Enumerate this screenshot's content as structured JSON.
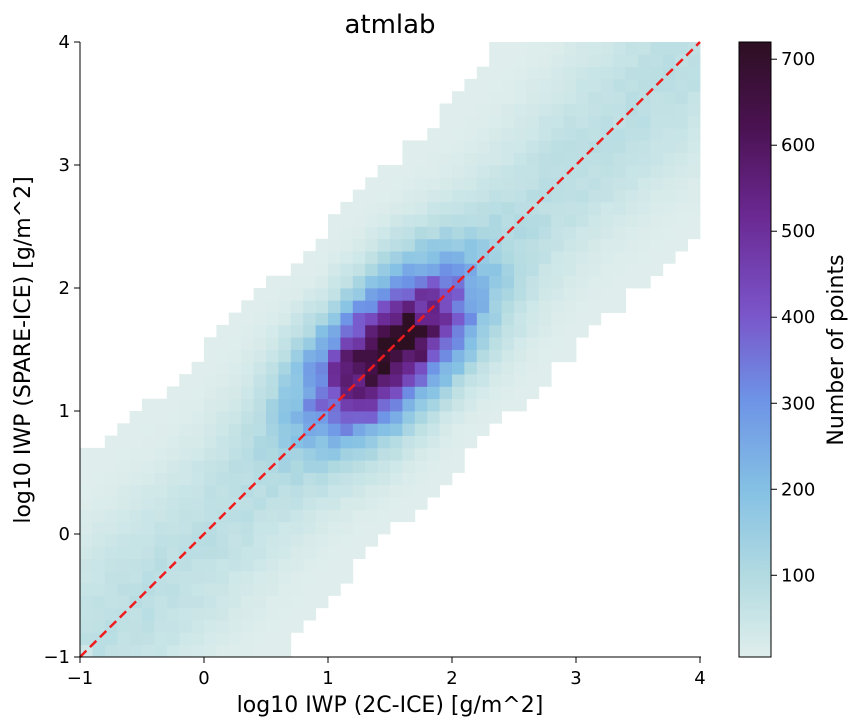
{
  "chart_data": {
    "type": "heatmap",
    "title": "atmlab",
    "xlabel": "log10 IWP (2C-ICE) [g/m^2]",
    "ylabel": "log10 IWP (SPARE-ICE) [g/m^2]",
    "xlim": [
      -1,
      4
    ],
    "ylim": [
      -1,
      4
    ],
    "xticks": [
      "−1",
      "0",
      "1",
      "2",
      "3",
      "4"
    ],
    "yticks": [
      "−1",
      "0",
      "1",
      "2",
      "3",
      "4"
    ],
    "bins": 50,
    "colorbar": {
      "label": "Number of points",
      "min": 5,
      "max": 720,
      "ticks": [
        "100",
        "200",
        "300",
        "400",
        "500",
        "600",
        "700"
      ],
      "colors": [
        "#dfeeec",
        "#b3dbe1",
        "#85c1e4",
        "#6d93e6",
        "#7a54c9",
        "#6a2891",
        "#4b1252",
        "#2d0f22"
      ]
    },
    "peak": {
      "x": 1.5,
      "y": 1.5,
      "count": 720
    },
    "reference_line": {
      "type": "identity",
      "from": [
        -1,
        -1
      ],
      "to": [
        4,
        4
      ],
      "color": "#ee1c1c",
      "style": "dashed"
    }
  }
}
